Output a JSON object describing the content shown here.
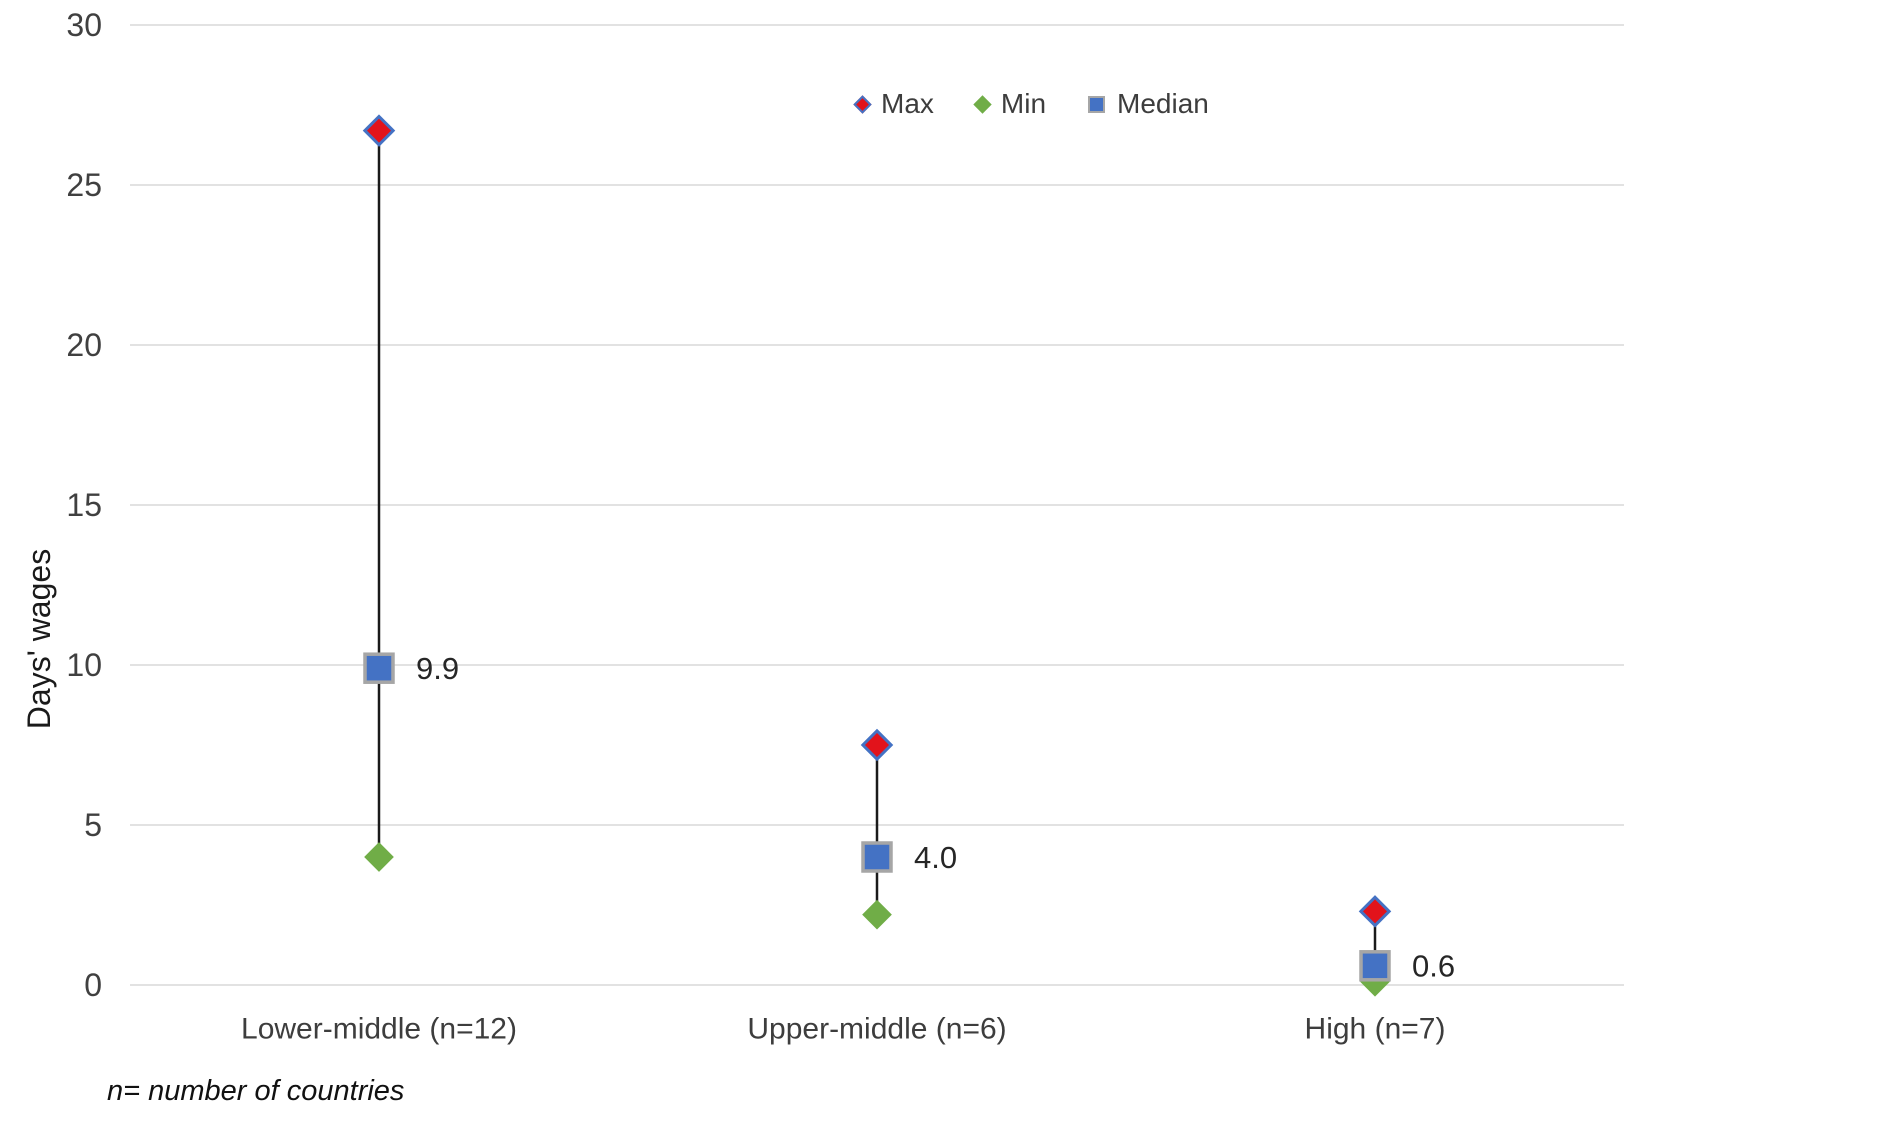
{
  "chart_data": {
    "type": "scatter",
    "subtype": "high-low-median-range",
    "title": "",
    "xlabel": "",
    "ylabel": "Days' wages",
    "ylim": [
      0,
      30
    ],
    "yticks": [
      0,
      5,
      10,
      15,
      20,
      25,
      30
    ],
    "grid": "horizontal",
    "legend_position": "top-center",
    "legend_entries": [
      "Max",
      "Min",
      "Median"
    ],
    "footnote": "n= number of countries",
    "categories": [
      "Lower-middle (n=12)",
      "Upper-middle (n=6)",
      "High (n=7)"
    ],
    "series": [
      {
        "name": "Max",
        "marker": "diamond",
        "fill": "#e2131b",
        "stroke": "#4472c4",
        "values": [
          26.7,
          7.5,
          2.3
        ]
      },
      {
        "name": "Min",
        "marker": "diamond",
        "fill": "#70ad47",
        "stroke": "none",
        "values": [
          4.0,
          2.2,
          0.1
        ]
      },
      {
        "name": "Median",
        "marker": "square",
        "fill": "#4472c4",
        "stroke": "#a6a6a6",
        "values": [
          9.9,
          4.0,
          0.6
        ],
        "labels": [
          "9.9",
          "4.0",
          "0.6"
        ]
      }
    ],
    "colors": {
      "background": "#ffffff",
      "grid": "#d9d9d9",
      "tick_text": "#404040",
      "category_text": "#3d3d3d",
      "data_label_text": "#262626",
      "range_line": "#1a1a1a",
      "max_fill": "#e2131b",
      "max_border": "#4472c4",
      "min_fill": "#70ad47",
      "median_fill": "#4472c4",
      "median_border": "#a6a6a6"
    }
  }
}
